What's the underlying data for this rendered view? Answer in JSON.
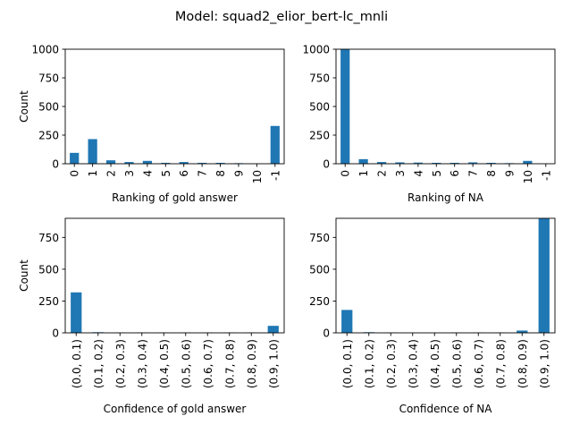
{
  "figure": {
    "title": "Model: squad2_elior_bert-lc_mnli"
  },
  "colors": {
    "bar": "#1f77b4"
  },
  "chart_data": [
    {
      "type": "bar",
      "categories": [
        "0",
        "1",
        "2",
        "3",
        "4",
        "5",
        "6",
        "7",
        "8",
        "9",
        "10",
        "-1"
      ],
      "values": [
        95,
        215,
        30,
        15,
        25,
        8,
        15,
        8,
        8,
        5,
        0,
        330
      ],
      "xlabel": "Ranking of gold answer",
      "ylabel": "Count",
      "ylim": [
        0,
        1000
      ],
      "yticks": [
        0,
        250,
        500,
        750,
        1000
      ],
      "grid": false
    },
    {
      "type": "bar",
      "categories": [
        "0",
        "1",
        "2",
        "3",
        "4",
        "5",
        "6",
        "7",
        "8",
        "9",
        "10",
        "-1"
      ],
      "values": [
        1000,
        40,
        15,
        12,
        10,
        8,
        8,
        12,
        8,
        5,
        25,
        0
      ],
      "xlabel": "Ranking of NA",
      "ylabel": "",
      "ylim": [
        0,
        1000
      ],
      "yticks": [
        0,
        250,
        500,
        750,
        1000
      ],
      "grid": false
    },
    {
      "type": "bar",
      "categories": [
        "(0.0, 0.1)",
        "(0.1, 0.2)",
        "(0.2, 0.3)",
        "(0.3, 0.4)",
        "(0.4, 0.5)",
        "(0.5, 0.6)",
        "(0.6, 0.7)",
        "(0.7, 0.8)",
        "(0.8, 0.9)",
        "(0.9, 1.0)"
      ],
      "values": [
        318,
        5,
        3,
        3,
        3,
        3,
        3,
        3,
        3,
        55
      ],
      "xlabel": "Confidence of gold answer",
      "ylabel": "Count",
      "ylim": [
        0,
        900
      ],
      "yticks": [
        0,
        250,
        500,
        750
      ],
      "grid": false
    },
    {
      "type": "bar",
      "categories": [
        "(0.0, 0.1)",
        "(0.1, 0.2)",
        "(0.2, 0.3)",
        "(0.3, 0.4)",
        "(0.4, 0.5)",
        "(0.5, 0.6)",
        "(0.6, 0.7)",
        "(0.7, 0.8)",
        "(0.8, 0.9)",
        "(0.9, 1.0)"
      ],
      "values": [
        180,
        5,
        3,
        0,
        0,
        3,
        3,
        3,
        18,
        900
      ],
      "xlabel": "Confidence of NA",
      "ylabel": "",
      "ylim": [
        0,
        900
      ],
      "yticks": [
        0,
        250,
        500,
        750
      ],
      "grid": false
    }
  ]
}
